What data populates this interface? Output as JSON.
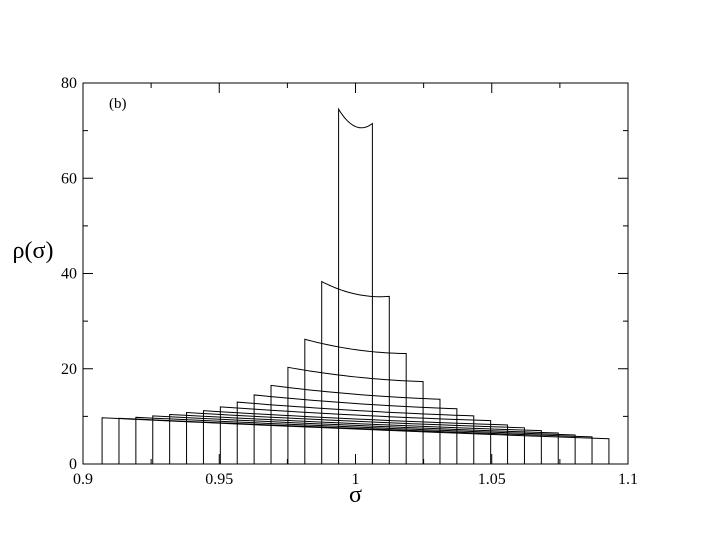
{
  "chart_data": {
    "type": "line",
    "annotation": "(b)",
    "xlabel": "σ",
    "ylabel": "ρ(σ)",
    "xlim": [
      0.9,
      1.1
    ],
    "ylim": [
      0,
      80
    ],
    "xticks": [
      0.9,
      0.95,
      1,
      1.05,
      1.1
    ],
    "xtick_labels": [
      "0.9",
      "0.95",
      "1",
      "1.05",
      "1.1"
    ],
    "yticks": [
      0,
      20,
      40,
      60,
      80
    ],
    "ytick_labels": [
      "0",
      "20",
      "40",
      "60",
      "80"
    ],
    "grid": false,
    "legend": "none",
    "series": [
      {
        "x0": 0.9938,
        "x1": 1.0062,
        "y0": 74.5,
        "y1": 71.5
      },
      {
        "x0": 0.9876,
        "x1": 1.0124,
        "y0": 38.3,
        "y1": 35.2
      },
      {
        "x0": 0.9814,
        "x1": 1.0186,
        "y0": 26.2,
        "y1": 23.2
      },
      {
        "x0": 0.9752,
        "x1": 1.0248,
        "y0": 20.3,
        "y1": 17.3
      },
      {
        "x0": 0.969,
        "x1": 1.031,
        "y0": 16.5,
        "y1": 13.6
      },
      {
        "x0": 0.9628,
        "x1": 1.0372,
        "y0": 14.5,
        "y1": 11.6
      },
      {
        "x0": 0.9566,
        "x1": 1.0434,
        "y0": 13.0,
        "y1": 10.1
      },
      {
        "x0": 0.9504,
        "x1": 1.0496,
        "y0": 12.0,
        "y1": 9.1
      },
      {
        "x0": 0.9442,
        "x1": 1.0558,
        "y0": 11.2,
        "y1": 8.2
      },
      {
        "x0": 0.938,
        "x1": 1.062,
        "y0": 10.8,
        "y1": 7.6
      },
      {
        "x0": 0.9318,
        "x1": 1.0682,
        "y0": 10.4,
        "y1": 7.0
      },
      {
        "x0": 0.9256,
        "x1": 1.0744,
        "y0": 10.1,
        "y1": 6.5
      },
      {
        "x0": 0.9194,
        "x1": 1.0806,
        "y0": 9.8,
        "y1": 6.1
      },
      {
        "x0": 0.9132,
        "x1": 1.0868,
        "y0": 9.6,
        "y1": 5.7
      },
      {
        "x0": 0.907,
        "x1": 1.093,
        "y0": 9.7,
        "y1": 5.3
      }
    ]
  }
}
